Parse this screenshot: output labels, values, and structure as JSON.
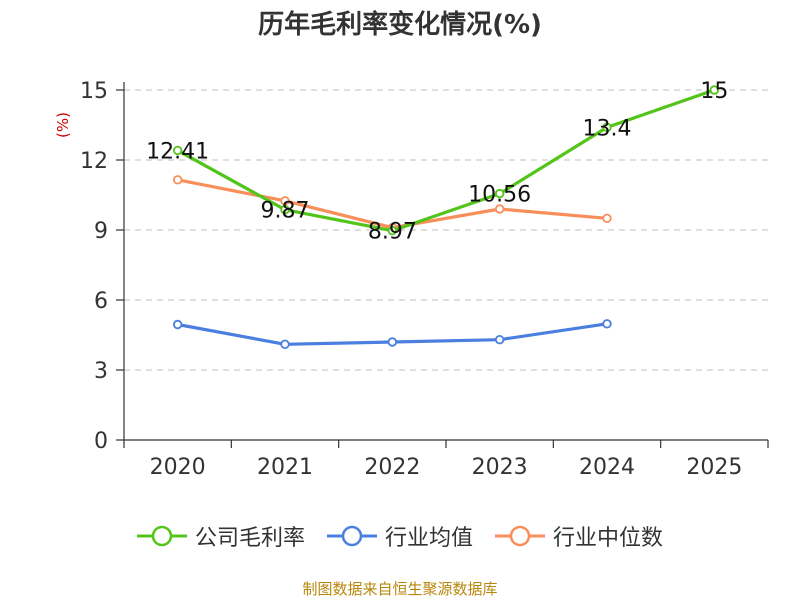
{
  "colors": {
    "company": "#52c41a",
    "industry_avg": "#4a7fe0",
    "industry_median": "#f98e5a",
    "ylabel": "#cc0000",
    "source": "#b8860b",
    "grid": "#cccccc",
    "axis": "#333333"
  },
  "chart_data": {
    "type": "line",
    "title": "历年毛利率变化情况(%)",
    "ylabel": "(%)",
    "xlabel": "",
    "categories": [
      "2020",
      "2021",
      "2022",
      "2023",
      "2024",
      "2025"
    ],
    "ylim": [
      0,
      15
    ],
    "yticks": [
      0,
      3,
      6,
      9,
      12,
      15
    ],
    "grid": true,
    "legend_position": "bottom",
    "series": [
      {
        "name": "公司毛利率",
        "values": [
          12.41,
          9.87,
          8.97,
          10.56,
          13.4,
          15
        ],
        "labels": [
          "12.41",
          "9.87",
          "8.97",
          "10.56",
          "13.4",
          "15"
        ]
      },
      {
        "name": "行业均值",
        "values": [
          4.95,
          4.1,
          4.2,
          4.3,
          4.98,
          null
        ]
      },
      {
        "name": "行业中位数",
        "values": [
          11.15,
          10.25,
          9.1,
          9.9,
          9.5,
          null
        ]
      }
    ]
  },
  "footer": {
    "source": "制图数据来自恒生聚源数据库"
  }
}
